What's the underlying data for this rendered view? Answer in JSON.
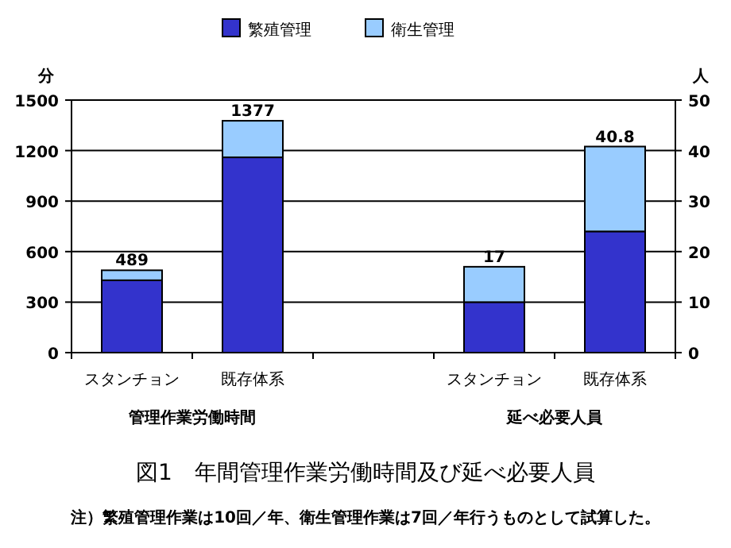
{
  "chart_data": [
    {
      "type": "bar",
      "title": "図1　年間管理作業労働時間及び延べ必要人員",
      "ylabel": "分",
      "xlabel": "管理作業労働時間",
      "categories": [
        "スタンチョン",
        "既存体系"
      ],
      "series": [
        {
          "name": "繁殖管理",
          "color": "#3333cc",
          "values": [
            430,
            1160
          ]
        },
        {
          "name": "衛生管理",
          "color": "#99ccff",
          "values": [
            59,
            217
          ]
        }
      ],
      "stacked": true,
      "totals": [
        "489",
        "1377"
      ],
      "ylim": [
        0,
        1500
      ],
      "yticks": [
        0,
        300,
        600,
        900,
        1200,
        1500
      ],
      "grid": "y",
      "legend": "top",
      "annotations": [
        "注）繁殖管理作業は10回／年、衛生管理作業は7回／年行うものとして試算した。"
      ]
    },
    {
      "type": "bar",
      "ylabel": "人",
      "xlabel": "延べ必要人員",
      "categories": [
        "スタンチョン",
        "既存体系"
      ],
      "series": [
        {
          "color": "#3333cc",
          "values": [
            10,
            24
          ]
        },
        {
          "color": "#99ccff",
          "values": [
            7,
            16.8
          ]
        }
      ],
      "stacked": true,
      "totals": [
        "17",
        "40.8"
      ],
      "ylim": [
        0,
        50
      ],
      "yticks": [
        0,
        10,
        20,
        30,
        40,
        50
      ],
      "grid": "y"
    }
  ]
}
